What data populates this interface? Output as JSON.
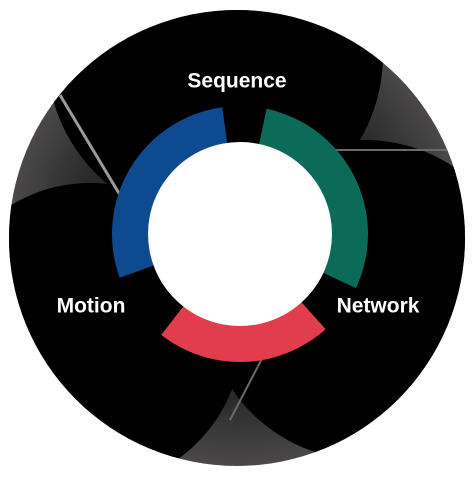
{
  "nodes": [
    {
      "label": "Sequence"
    },
    {
      "label": "Motion"
    },
    {
      "label": "Network"
    }
  ]
}
